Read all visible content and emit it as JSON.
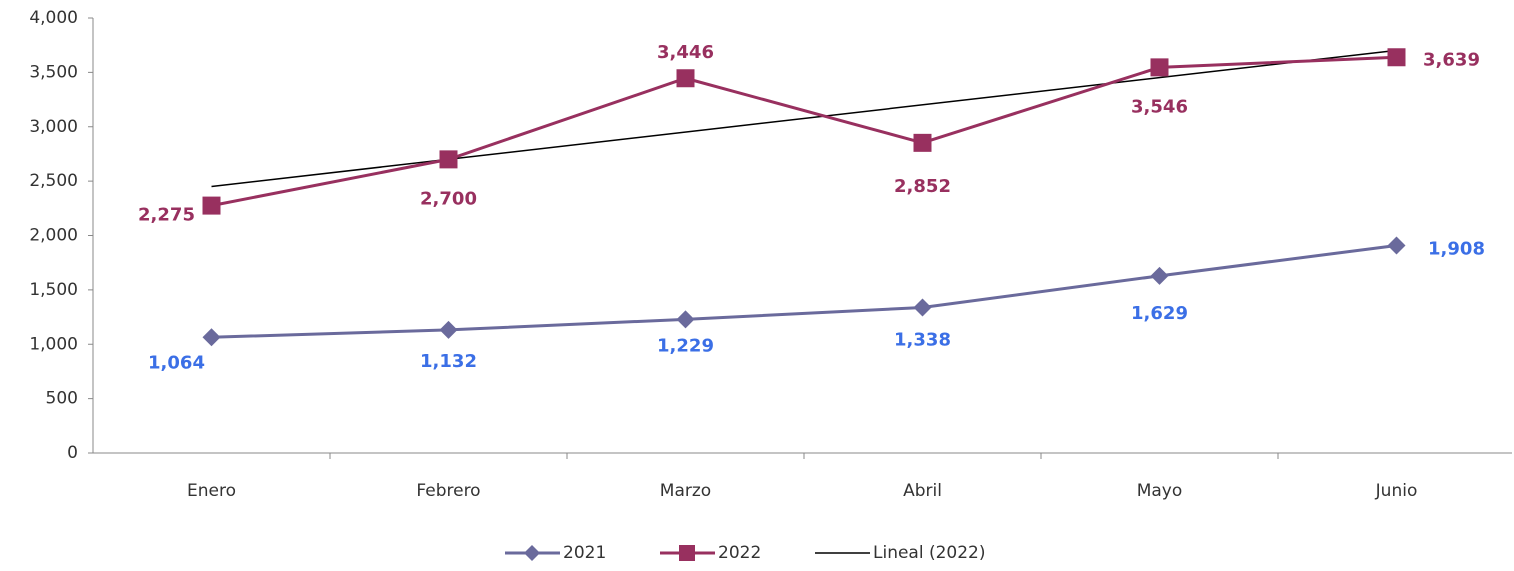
{
  "chart_data": {
    "type": "line",
    "categories": [
      "Enero",
      "Febrero",
      "Marzo",
      "Abril",
      "Mayo",
      "Junio"
    ],
    "series": [
      {
        "name": "2021",
        "color": "#6a6a9c",
        "label_color": "#3b6fe6",
        "marker": "diamond",
        "values": [
          1064,
          1132,
          1229,
          1338,
          1629,
          1908
        ],
        "value_labels": [
          "1,064",
          "1,132",
          "1,229",
          "1,338",
          "1,629",
          "1,908"
        ]
      },
      {
        "name": "2022",
        "color": "#98305f",
        "label_color": "#98305f",
        "marker": "square",
        "values": [
          2275,
          2700,
          3446,
          2852,
          3546,
          3639
        ],
        "value_labels": [
          "2,275",
          "2,700",
          "3,446",
          "2,852",
          "3,546",
          "3,639"
        ]
      }
    ],
    "trendline": {
      "name": "Lineal (2022)",
      "color": "#000000",
      "fit": "linear",
      "of": "2022"
    },
    "ylim": [
      0,
      4000
    ],
    "yticks": [
      0,
      {
        "value": 500,
        "label": "500"
      },
      {
        "value": 1000,
        "label": "1,000"
      },
      {
        "value": 1500,
        "label": "1,500"
      },
      {
        "value": 2000,
        "label": "2,000"
      },
      {
        "value": 2500,
        "label": "2,500"
      },
      {
        "value": 3000,
        "label": "3,000"
      },
      {
        "value": 3500,
        "label": "3,500"
      },
      {
        "value": 4000,
        "label": "4,000"
      }
    ],
    "grid": false,
    "legend": "bottom"
  }
}
